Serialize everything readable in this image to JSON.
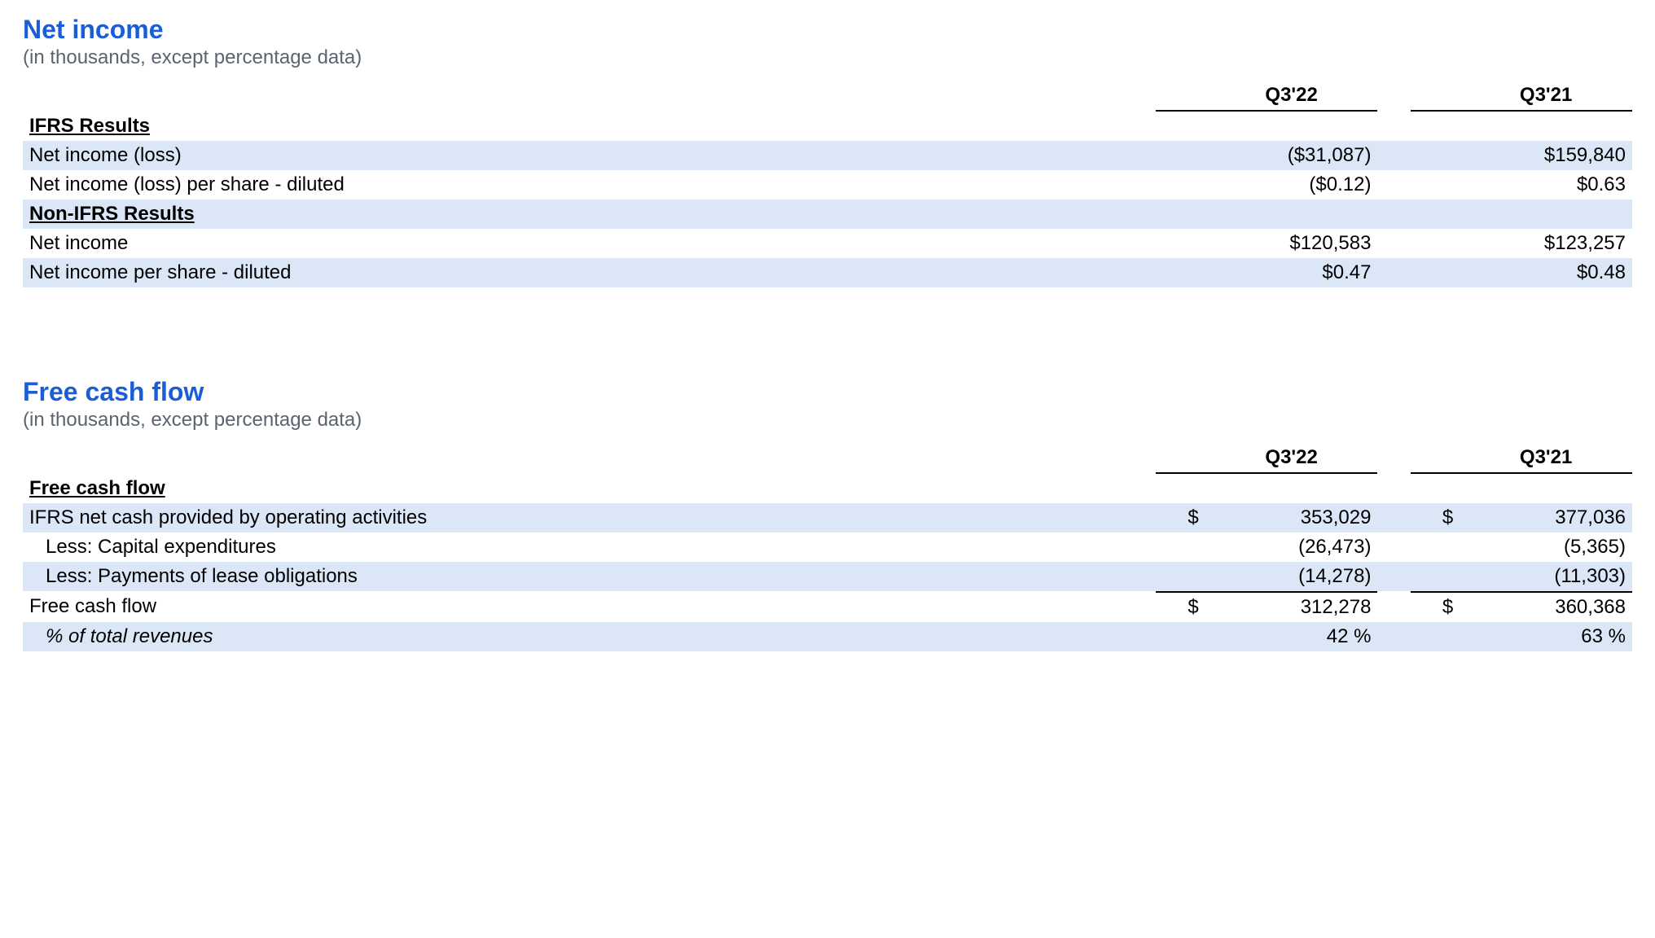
{
  "styles": {
    "title_color": "#1b5dd8",
    "subtitle_color": "#5a6471",
    "shade_color": "#dbe7f6",
    "text_color": "#000000",
    "background_color": "#ffffff",
    "title_fontsize": 32,
    "body_fontsize": 24
  },
  "net_income": {
    "title": "Net income",
    "subtitle": "(in thousands, except percentage data)",
    "columns": [
      "Q3'22",
      "Q3'21"
    ],
    "sections": [
      {
        "header": "IFRS Results",
        "rows": [
          {
            "label": "Net income (loss)",
            "q322_sym": "",
            "q322": "($31,087)",
            "q321_sym": "",
            "q321": "$159,840",
            "shaded": true
          },
          {
            "label": "Net income (loss) per share - diluted",
            "q322_sym": "",
            "q322": "($0.12)",
            "q321_sym": "",
            "q321": "$0.63",
            "shaded": false
          }
        ]
      },
      {
        "header": "Non-IFRS Results",
        "header_shaded": true,
        "rows": [
          {
            "label": "Net income",
            "q322_sym": "",
            "q322": "$120,583",
            "q321_sym": "",
            "q321": "$123,257",
            "shaded": false
          },
          {
            "label": "Net income per share - diluted",
            "q322_sym": "",
            "q322": "$0.47",
            "q321_sym": "",
            "q321": "$0.48",
            "shaded": true
          }
        ]
      }
    ]
  },
  "free_cash_flow": {
    "title": "Free cash flow",
    "subtitle": "(in thousands, except percentage data)",
    "columns": [
      "Q3'22",
      "Q3'21"
    ],
    "section_header": "Free cash flow",
    "rows": [
      {
        "label": "IFRS net cash provided by operating activities",
        "q322_sym": "$",
        "q322": "353,029",
        "q321_sym": "$",
        "q321": "377,036",
        "shaded": true,
        "indent": false
      },
      {
        "label": "Less: Capital expenditures",
        "q322_sym": "",
        "q322": "(26,473)",
        "q321_sym": "",
        "q321": "(5,365)",
        "shaded": false,
        "indent": true
      },
      {
        "label": "Less: Payments of lease obligations",
        "q322_sym": "",
        "q322": "(14,278)",
        "q321_sym": "",
        "q321": "(11,303)",
        "shaded": true,
        "indent": true
      }
    ],
    "subtotal": {
      "label": "Free cash flow",
      "q322_sym": "$",
      "q322": "312,278",
      "q321_sym": "$",
      "q321": "360,368"
    },
    "percent_row": {
      "label": "% of total revenues",
      "q322": "42 %",
      "q321": "63 %"
    }
  }
}
